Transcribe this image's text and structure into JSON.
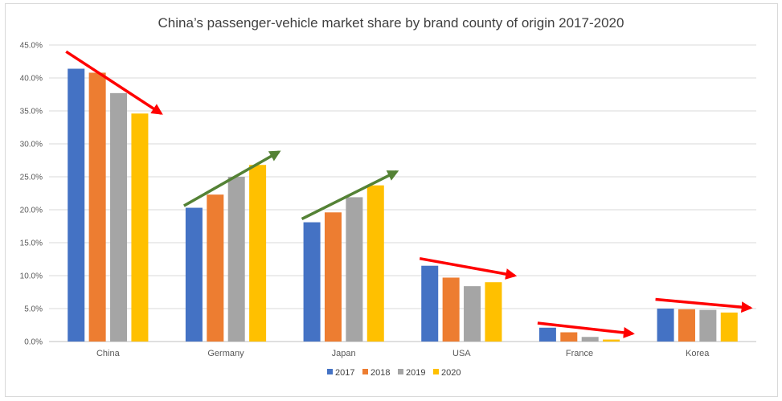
{
  "chart_data": {
    "type": "bar",
    "title": "China’s passenger-vehicle market share by brand county of origin 2017-2020",
    "categories": [
      "China",
      "Germany",
      "Japan",
      "USA",
      "France",
      "Korea"
    ],
    "series": [
      {
        "name": "2017",
        "color": "#4472C4",
        "values": [
          41.4,
          20.3,
          18.1,
          11.5,
          2.1,
          5.0
        ]
      },
      {
        "name": "2018",
        "color": "#ED7D31",
        "values": [
          40.8,
          22.3,
          19.6,
          9.7,
          1.4,
          4.9
        ]
      },
      {
        "name": "2019",
        "color": "#A5A5A5",
        "values": [
          37.7,
          25.0,
          21.9,
          8.4,
          0.7,
          4.8
        ]
      },
      {
        "name": "2020",
        "color": "#FFC000",
        "values": [
          34.6,
          26.8,
          23.7,
          9.0,
          0.3,
          4.4
        ]
      }
    ],
    "ylim": [
      0,
      45
    ],
    "ytick_step": 5,
    "ytick_labels": [
      "0.0%",
      "5.0%",
      "10.0%",
      "15.0%",
      "20.0%",
      "25.0%",
      "30.0%",
      "35.0%",
      "40.0%",
      "45.0%"
    ],
    "xlabel": "",
    "ylabel": "",
    "grid": true,
    "legend_position": "bottom",
    "annotations": [
      {
        "category": "China",
        "direction": "down",
        "color": "#FF0000",
        "from_value": 44.0,
        "to_value": 34.6
      },
      {
        "category": "Germany",
        "direction": "up",
        "color": "#548235",
        "from_value": 20.6,
        "to_value": 28.8
      },
      {
        "category": "Japan",
        "direction": "up",
        "color": "#548235",
        "from_value": 18.6,
        "to_value": 25.8
      },
      {
        "category": "USA",
        "direction": "down",
        "color": "#FF0000",
        "from_value": 12.6,
        "to_value": 10.0
      },
      {
        "category": "France",
        "direction": "down",
        "color": "#FF0000",
        "from_value": 2.8,
        "to_value": 1.2
      },
      {
        "category": "Korea",
        "direction": "down",
        "color": "#FF0000",
        "from_value": 6.4,
        "to_value": 5.1
      }
    ],
    "gridline_color": "#d9d9d9",
    "axis_color": "#bfbfbf"
  }
}
